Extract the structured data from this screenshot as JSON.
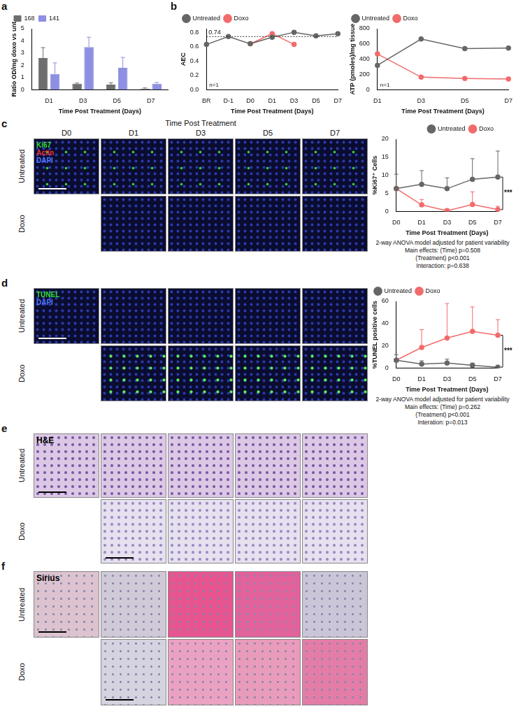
{
  "chart_data": [
    {
      "panel": "a",
      "type": "bar",
      "x_label": "Time Post Treatment (Days)",
      "y_label": "Ratio OD/mg doxo vs unt",
      "categories": [
        "D1",
        "D3",
        "D5",
        "D7"
      ],
      "series": [
        {
          "name": "168",
          "color": "#6e6e6e",
          "values": [
            2.6,
            0.5,
            0.42,
            0.1
          ],
          "errors": [
            0.85,
            0.05,
            0.15,
            0.05
          ]
        },
        {
          "name": "141",
          "color": "#8d8fe0",
          "values": [
            1.3,
            3.5,
            1.8,
            0.5
          ],
          "errors": [
            0.9,
            0.8,
            0.85,
            0.1
          ]
        }
      ],
      "ylim": [
        0,
        5
      ],
      "yticks": [
        0,
        1,
        2,
        3,
        4,
        5
      ],
      "grid": false,
      "legend": "top-left"
    },
    {
      "panel": "b",
      "type": "line",
      "marker": "circle",
      "x_label": "Time Post Treatment (Days)",
      "y_label": "AEC",
      "categories": [
        "BR",
        "D-1",
        "D0",
        "D1",
        "D3",
        "D5",
        "D7"
      ],
      "series": [
        {
          "name": "Untreated",
          "color": "#666666",
          "values": [
            0.63,
            0.74,
            0.64,
            0.73,
            0.8,
            0.75,
            0.78
          ]
        },
        {
          "name": "Doxo",
          "color": "#f26b6b",
          "values": [
            null,
            null,
            0.64,
            0.78,
            0.63,
            null,
            null
          ]
        }
      ],
      "ylim": [
        0,
        0.85
      ],
      "yticks": [
        {
          "value": 0,
          "label": "0.0"
        },
        {
          "value": 0.2,
          "label": "0.2"
        },
        {
          "value": 0.4,
          "label": "0.4"
        },
        {
          "value": 0.6,
          "label": "0.6"
        },
        {
          "value": 0.8,
          "label": "0.8"
        }
      ],
      "reference_line": 0.74,
      "annotations": [
        {
          "text": "n=1"
        }
      ],
      "grid": false,
      "legend": "top-left"
    },
    {
      "type": "line",
      "marker": "circle",
      "x_label": "Time Post Treatment (Days)",
      "y_label": "ATP (pmoles)/mg tissue",
      "categories": [
        "D1",
        "D3",
        "D5",
        "D7"
      ],
      "series": [
        {
          "name": "Untreated",
          "color": "#666666",
          "values": [
            320,
            665,
            540,
            545
          ]
        },
        {
          "name": "Doxo",
          "color": "#f26b6b",
          "values": [
            470,
            165,
            148,
            140
          ]
        }
      ],
      "ylim": [
        0,
        800
      ],
      "yticks": [
        0,
        200,
        400,
        600,
        800
      ],
      "annotations": [
        {
          "text": "n=1"
        }
      ],
      "grid": false,
      "legend": "top-left"
    },
    {
      "type": "line",
      "marker": "circle",
      "x_label": "Time Post Treatment (Days)",
      "y_label": "%Ki67⁺ Cells",
      "categories": [
        "D0",
        "D1",
        "D3",
        "D5",
        "D7"
      ],
      "series": [
        {
          "name": "Untreated",
          "color": "#666666",
          "values": [
            6.3,
            7.5,
            6.3,
            8.9,
            9.5
          ],
          "errors": [
            4,
            3.8,
            3,
            5.7,
            7.2
          ]
        },
        {
          "name": "Doxo",
          "color": "#f26b6b",
          "values": [
            6.3,
            1.8,
            0.2,
            1.9,
            0.5
          ],
          "errors": [
            null,
            1.5,
            0.5,
            3.5,
            0.9
          ]
        }
      ],
      "ylim": [
        0,
        20
      ],
      "yticks": [
        0,
        5,
        10,
        15,
        20
      ],
      "annotations": [
        {
          "text": "***",
          "x": "D7"
        }
      ],
      "notes": [
        "2-way ANOVA model adjusted for patient variability",
        "Main effects: (Time) p=0.508",
        "(Treatment) p<0.001",
        "Interaction: p=0.638"
      ],
      "grid": false,
      "legend": "top-right"
    },
    {
      "type": "line",
      "marker": "circle",
      "x_label": "Time Post Treatment (Days)",
      "y_label": "%TUNEL positive cells",
      "categories": [
        "D0",
        "D1",
        "D3",
        "D5",
        "D7"
      ],
      "series": [
        {
          "name": "Untreated",
          "color": "#666666",
          "values": [
            7,
            3.5,
            4.5,
            2.5,
            0.8
          ],
          "errors": [
            5,
            3,
            3.5,
            2,
            1
          ]
        },
        {
          "name": "Doxo",
          "color": "#f26b6b",
          "values": [
            7,
            18.5,
            27,
            33,
            29.5
          ],
          "errors": [
            null,
            16,
            31,
            22,
            14
          ]
        }
      ],
      "ylim": [
        0,
        60
      ],
      "yticks": [
        0,
        20,
        40,
        60
      ],
      "annotations": [
        {
          "text": "***",
          "x": "D7"
        }
      ],
      "notes": [
        "2-way ANOVA model adjusted for patient variability",
        "Main effects: (Time) p=0.262",
        "(Treatment) p<0.001",
        "Interation: p=0.013"
      ],
      "grid": false,
      "legend": "top-left"
    }
  ],
  "image_grid": {
    "column_header": "Time Post Treatment",
    "columns": [
      "D0",
      "D1",
      "D3",
      "D5",
      "D7"
    ],
    "rows": [
      "Untreated",
      "Doxo"
    ],
    "panels": [
      {
        "panel": "c",
        "stains": [
          {
            "name": "Ki67",
            "color": "#33dd33"
          },
          {
            "name": "Actin",
            "color": "#ee3333"
          },
          {
            "name": "DAPI",
            "color": "#5577ff"
          }
        ]
      },
      {
        "panel": "d",
        "stains": [
          {
            "name": "TUNEL",
            "color": "#33dd33"
          },
          {
            "name": "DAPI",
            "color": "#5577ff"
          }
        ]
      },
      {
        "panel": "e",
        "stains": [
          {
            "name": "H&E",
            "color": "#000000"
          }
        ]
      },
      {
        "panel": "f",
        "stains": [
          {
            "name": "Sirius",
            "color": "#000000"
          }
        ]
      }
    ]
  }
}
